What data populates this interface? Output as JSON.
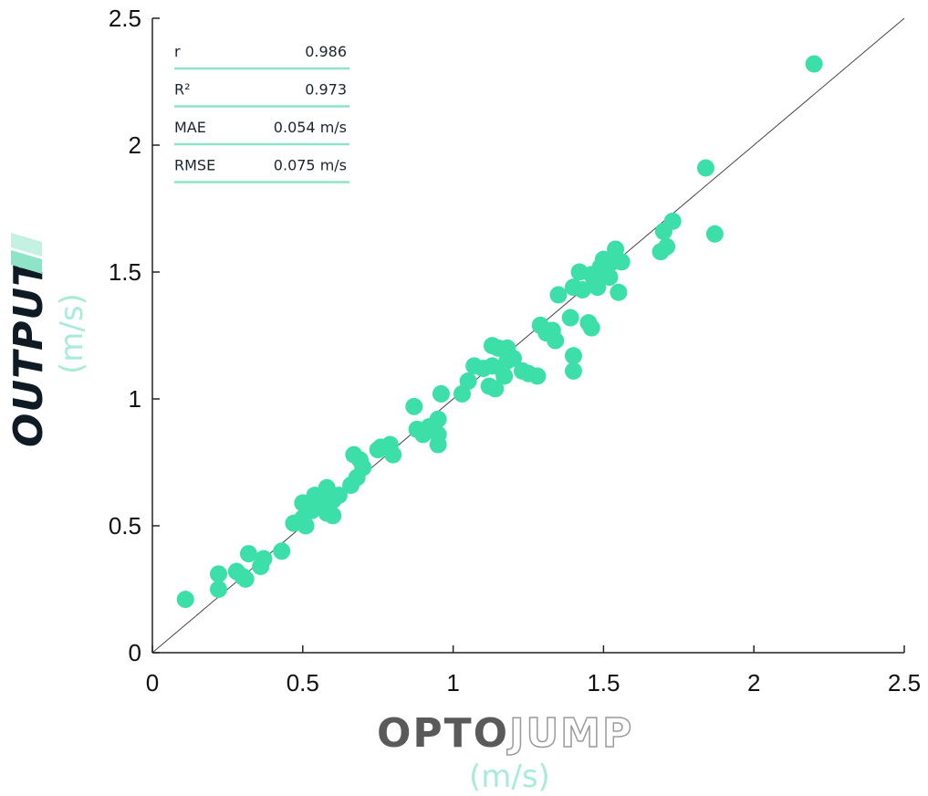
{
  "chart_data": {
    "type": "scatter",
    "xlim": [
      0,
      2.5
    ],
    "ylim": [
      0,
      2.5
    ],
    "x_ticks": [
      "0",
      "0.5",
      "1",
      "1.5",
      "2",
      "2.5"
    ],
    "y_ticks": [
      "0",
      "0.5",
      "1",
      "1.5",
      "2",
      "2.5"
    ],
    "xlabel_brand": [
      "OPTO",
      "JUMP"
    ],
    "xlabel_unit": "(m/s)",
    "ylabel_brand": "OUTPUT",
    "ylabel_unit": "(m/s)",
    "identity_line": true,
    "grid": false,
    "marker_color": "#3ddfa9",
    "stats": [
      {
        "label": "r",
        "value": "0.986"
      },
      {
        "label": "R²",
        "value": "0.973"
      },
      {
        "label": "MAE",
        "value": "0.054 m/s"
      },
      {
        "label": "RMSE",
        "value": "0.075 m/s"
      }
    ],
    "points": [
      [
        0.11,
        0.21
      ],
      [
        0.22,
        0.25
      ],
      [
        0.22,
        0.31
      ],
      [
        0.28,
        0.32
      ],
      [
        0.3,
        0.3
      ],
      [
        0.31,
        0.29
      ],
      [
        0.32,
        0.39
      ],
      [
        0.36,
        0.34
      ],
      [
        0.37,
        0.37
      ],
      [
        0.43,
        0.4
      ],
      [
        0.47,
        0.51
      ],
      [
        0.5,
        0.53
      ],
      [
        0.51,
        0.5
      ],
      [
        0.5,
        0.59
      ],
      [
        0.53,
        0.56
      ],
      [
        0.54,
        0.62
      ],
      [
        0.56,
        0.58
      ],
      [
        0.57,
        0.61
      ],
      [
        0.58,
        0.65
      ],
      [
        0.58,
        0.55
      ],
      [
        0.6,
        0.54
      ],
      [
        0.6,
        0.6
      ],
      [
        0.62,
        0.62
      ],
      [
        0.66,
        0.66
      ],
      [
        0.67,
        0.78
      ],
      [
        0.68,
        0.69
      ],
      [
        0.69,
        0.76
      ],
      [
        0.7,
        0.73
      ],
      [
        0.75,
        0.8
      ],
      [
        0.76,
        0.81
      ],
      [
        0.79,
        0.82
      ],
      [
        0.8,
        0.78
      ],
      [
        0.87,
        0.97
      ],
      [
        0.88,
        0.88
      ],
      [
        0.9,
        0.86
      ],
      [
        0.92,
        0.89
      ],
      [
        0.93,
        0.88
      ],
      [
        0.95,
        0.82
      ],
      [
        0.95,
        0.86
      ],
      [
        0.95,
        0.92
      ],
      [
        0.96,
        1.02
      ],
      [
        1.03,
        1.02
      ],
      [
        1.05,
        1.07
      ],
      [
        1.07,
        1.13
      ],
      [
        1.1,
        1.12
      ],
      [
        1.12,
        1.05
      ],
      [
        1.13,
        1.13
      ],
      [
        1.13,
        1.21
      ],
      [
        1.14,
        1.04
      ],
      [
        1.15,
        1.2
      ],
      [
        1.16,
        1.12
      ],
      [
        1.17,
        1.09
      ],
      [
        1.18,
        1.15
      ],
      [
        1.18,
        1.2
      ],
      [
        1.2,
        1.16
      ],
      [
        1.23,
        1.11
      ],
      [
        1.25,
        1.1
      ],
      [
        1.28,
        1.09
      ],
      [
        1.29,
        1.29
      ],
      [
        1.31,
        1.26
      ],
      [
        1.33,
        1.27
      ],
      [
        1.34,
        1.23
      ],
      [
        1.35,
        1.41
      ],
      [
        1.39,
        1.32
      ],
      [
        1.4,
        1.17
      ],
      [
        1.4,
        1.11
      ],
      [
        1.4,
        1.44
      ],
      [
        1.42,
        1.5
      ],
      [
        1.43,
        1.43
      ],
      [
        1.45,
        1.3
      ],
      [
        1.46,
        1.28
      ],
      [
        1.46,
        1.49
      ],
      [
        1.47,
        1.46
      ],
      [
        1.48,
        1.44
      ],
      [
        1.49,
        1.52
      ],
      [
        1.5,
        1.55
      ],
      [
        1.51,
        1.49
      ],
      [
        1.52,
        1.48
      ],
      [
        1.53,
        1.54
      ],
      [
        1.54,
        1.59
      ],
      [
        1.55,
        1.42
      ],
      [
        1.56,
        1.54
      ],
      [
        1.69,
        1.58
      ],
      [
        1.7,
        1.66
      ],
      [
        1.71,
        1.6
      ],
      [
        1.73,
        1.7
      ],
      [
        1.84,
        1.91
      ],
      [
        1.87,
        1.65
      ],
      [
        2.2,
        2.32
      ]
    ]
  }
}
